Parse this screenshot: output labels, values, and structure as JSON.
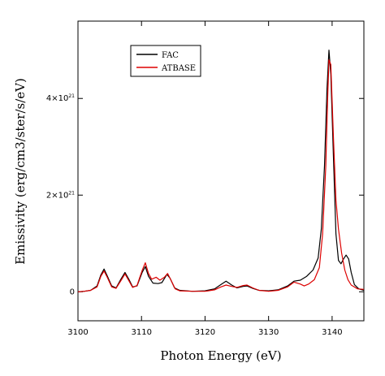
{
  "chart_data": {
    "type": "line",
    "xlabel": "Photon Energy (eV)",
    "ylabel": "Emissivity (erg/cm3/ster/s/eV)",
    "xlim": [
      3100,
      3145
    ],
    "ylim": [
      -6e+20,
      5.6e+21
    ],
    "x_ticks": [
      {
        "value": 3100,
        "label": "3100"
      },
      {
        "value": 3110,
        "label": "3110"
      },
      {
        "value": 3120,
        "label": "3120"
      },
      {
        "value": 3130,
        "label": "3130"
      },
      {
        "value": 3140,
        "label": "3140"
      }
    ],
    "y_ticks": [
      {
        "value": 0,
        "base": "0",
        "exp": ""
      },
      {
        "value": 2e+21,
        "base": "2×10",
        "exp": "21"
      },
      {
        "value": 4e+21,
        "base": "4×10",
        "exp": "21"
      }
    ],
    "grid": false,
    "legend_position": "top-left",
    "series": [
      {
        "name": "FAC",
        "color": "#000000",
        "points": [
          [
            3100,
            0.0
          ],
          [
            3101,
            1e+19
          ],
          [
            3102,
            3e+19
          ],
          [
            3103,
            1.2e+20
          ],
          [
            3103.6,
            3.5e+20
          ],
          [
            3104.1,
            4.7e+20
          ],
          [
            3104.6,
            3.3e+20
          ],
          [
            3105.3,
            1.2e+20
          ],
          [
            3106,
            8e+19
          ],
          [
            3106.8,
            2.7e+20
          ],
          [
            3107.4,
            4e+20
          ],
          [
            3108,
            2.6e+20
          ],
          [
            3108.6,
            1e+20
          ],
          [
            3109.3,
            1.2e+20
          ],
          [
            3110.1,
            4e+20
          ],
          [
            3110.6,
            5.2e+20
          ],
          [
            3111.1,
            3.2e+20
          ],
          [
            3111.8,
            1.8e+20
          ],
          [
            3112.6,
            1.7e+20
          ],
          [
            3113.2,
            1.9e+20
          ],
          [
            3114.0,
            3.6e+20
          ],
          [
            3114.5,
            2.8e+20
          ],
          [
            3115.2,
            8e+19
          ],
          [
            3116,
            3e+19
          ],
          [
            3118,
            1e+19
          ],
          [
            3120,
            2e+19
          ],
          [
            3121.5,
            6e+19
          ],
          [
            3122.5,
            1.5e+20
          ],
          [
            3123.3,
            2.2e+20
          ],
          [
            3124.2,
            1.4e+20
          ],
          [
            3125,
            8e+19
          ],
          [
            3126,
            1.1e+20
          ],
          [
            3126.6,
            1.2e+20
          ],
          [
            3127.5,
            7e+19
          ],
          [
            3128.5,
            3e+19
          ],
          [
            3130,
            2e+19
          ],
          [
            3131.5,
            4e+19
          ],
          [
            3133,
            1.2e+20
          ],
          [
            3134,
            2.2e+20
          ],
          [
            3135,
            2.4e+20
          ],
          [
            3136,
            3.2e+20
          ],
          [
            3137,
            4.5e+20
          ],
          [
            3137.8,
            7e+20
          ],
          [
            3138.3,
            1.3e+21
          ],
          [
            3138.8,
            2.6e+21
          ],
          [
            3139.2,
            4.2e+21
          ],
          [
            3139.5,
            5e+21
          ],
          [
            3139.8,
            4.5e+21
          ],
          [
            3140.2,
            2.8e+21
          ],
          [
            3140.6,
            1.2e+21
          ],
          [
            3141.0,
            6.5e+20
          ],
          [
            3141.4,
            5.8e+20
          ],
          [
            3141.8,
            6.8e+20
          ],
          [
            3142.2,
            7.6e+20
          ],
          [
            3142.6,
            6.8e+20
          ],
          [
            3143,
            4e+20
          ],
          [
            3143.5,
            1.5e+20
          ],
          [
            3144.2,
            6e+19
          ],
          [
            3145,
            3e+19
          ]
        ]
      },
      {
        "name": "ATBASE",
        "color": "#dd0000",
        "points": [
          [
            3100,
            0.0
          ],
          [
            3101,
            1e+19
          ],
          [
            3102,
            3e+19
          ],
          [
            3103,
            1e+20
          ],
          [
            3103.6,
            3.2e+20
          ],
          [
            3104.1,
            4.3e+20
          ],
          [
            3104.6,
            3e+20
          ],
          [
            3105.3,
            1e+20
          ],
          [
            3106,
            7e+19
          ],
          [
            3106.8,
            2.4e+20
          ],
          [
            3107.4,
            3.7e+20
          ],
          [
            3108,
            2.3e+20
          ],
          [
            3108.6,
            9e+19
          ],
          [
            3109.3,
            1.3e+20
          ],
          [
            3110.1,
            4.4e+20
          ],
          [
            3110.6,
            6e+20
          ],
          [
            3111.1,
            3.8e+20
          ],
          [
            3111.6,
            2.6e+20
          ],
          [
            3112.3,
            3e+20
          ],
          [
            3112.9,
            2.4e+20
          ],
          [
            3113.6,
            3e+20
          ],
          [
            3114.1,
            3.8e+20
          ],
          [
            3114.6,
            2.5e+20
          ],
          [
            3115.3,
            6e+19
          ],
          [
            3116,
            2e+19
          ],
          [
            3118,
            1e+19
          ],
          [
            3120,
            1e+19
          ],
          [
            3121.5,
            4e+19
          ],
          [
            3122.5,
            1e+20
          ],
          [
            3123.3,
            1.4e+20
          ],
          [
            3124.2,
            1.1e+20
          ],
          [
            3125,
            9e+19
          ],
          [
            3126,
            1.3e+20
          ],
          [
            3126.6,
            1.4e+20
          ],
          [
            3127.5,
            8e+19
          ],
          [
            3128.5,
            3e+19
          ],
          [
            3130,
            1e+19
          ],
          [
            3131.5,
            3e+19
          ],
          [
            3133,
            1e+20
          ],
          [
            3134,
            2e+20
          ],
          [
            3135,
            1.6e+20
          ],
          [
            3135.6,
            1.2e+20
          ],
          [
            3136.3,
            1.6e+20
          ],
          [
            3137.2,
            2.5e+20
          ],
          [
            3138,
            5e+20
          ],
          [
            3138.5,
            1.2e+21
          ],
          [
            3139.0,
            2.6e+21
          ],
          [
            3139.3,
            4e+21
          ],
          [
            3139.5,
            4.8e+21
          ],
          [
            3139.8,
            4.7e+21
          ],
          [
            3140.2,
            3.2e+21
          ],
          [
            3140.6,
            1.9e+21
          ],
          [
            3141.0,
            1.3e+21
          ],
          [
            3141.5,
            8e+20
          ],
          [
            3142,
            4.5e+20
          ],
          [
            3142.5,
            2.5e+20
          ],
          [
            3143,
            1.4e+20
          ],
          [
            3144,
            6e+19
          ],
          [
            3145,
            5e+19
          ]
        ]
      }
    ]
  }
}
